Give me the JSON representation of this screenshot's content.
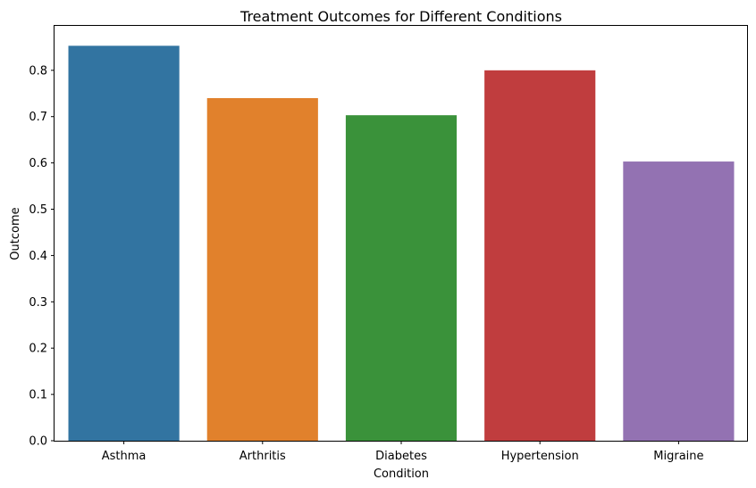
{
  "chart_data": {
    "type": "bar",
    "title": "Treatment Outcomes for Different Conditions",
    "xlabel": "Condition",
    "ylabel": "Outcome",
    "categories": [
      "Asthma",
      "Arthritis",
      "Diabetes",
      "Hypertension",
      "Migraine"
    ],
    "values": [
      0.853,
      0.74,
      0.703,
      0.8,
      0.603
    ],
    "colors": [
      "#3274a1",
      "#e1812c",
      "#3a923a",
      "#c03d3e",
      "#9372b2"
    ],
    "ylim": [
      0,
      0.896
    ],
    "yticks": [
      0.0,
      0.1,
      0.2,
      0.3,
      0.4,
      0.5,
      0.6,
      0.7,
      0.8
    ],
    "ytick_labels": [
      "0.0",
      "0.1",
      "0.2",
      "0.3",
      "0.4",
      "0.5",
      "0.6",
      "0.7",
      "0.8"
    ],
    "grid": false,
    "legend": "none"
  }
}
